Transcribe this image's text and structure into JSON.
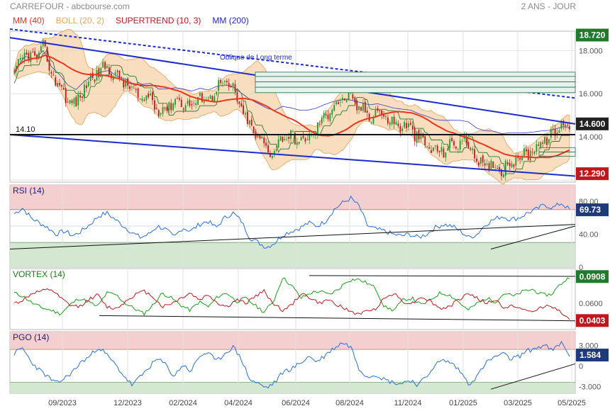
{
  "header": {
    "title": "CARREFOUR - abcbourse.com",
    "period": "2 ANS - JOUR"
  },
  "legend": [
    {
      "label": "MM (40)",
      "color": "#e8371e"
    },
    {
      "label": "BOLL (20, 2)",
      "color": "#f0a64a"
    },
    {
      "label": "SUPERTREND (10, 3)",
      "color": "#c0161c"
    },
    {
      "label": "MM (200)",
      "color": "#2323c8"
    }
  ],
  "chart_data": [
    {
      "type": "candlestick",
      "x": [
        "09/2023",
        "12/2023",
        "02/2024",
        "04/2024",
        "06/2024",
        "08/2024",
        "11/2024",
        "01/2025",
        "03/2025",
        "05/2025"
      ],
      "y_ticks": [
        12.0,
        14.0,
        16.0,
        18.0
      ],
      "y_tick_labels": [
        "",
        "14.000",
        "16.000",
        "18.000"
      ],
      "ylim": [
        11.9,
        18.9
      ],
      "price_path": [
        [
          0,
          16.8
        ],
        [
          5,
          17.9
        ],
        [
          10,
          17.6
        ],
        [
          14,
          18.2
        ],
        [
          18,
          16.9
        ],
        [
          22,
          16.4
        ],
        [
          26,
          15.7
        ],
        [
          30,
          15.5
        ],
        [
          34,
          16.3
        ],
        [
          38,
          16.8
        ],
        [
          42,
          17.1
        ],
        [
          46,
          17.2
        ],
        [
          50,
          16.7
        ],
        [
          54,
          16.5
        ],
        [
          58,
          16.1
        ],
        [
          62,
          15.6
        ],
        [
          66,
          15.9
        ],
        [
          70,
          15.2
        ],
        [
          74,
          15.4
        ],
        [
          78,
          15.7
        ],
        [
          82,
          15.6
        ],
        [
          86,
          15.4
        ],
        [
          90,
          15.9
        ],
        [
          94,
          15.7
        ],
        [
          98,
          16.3
        ],
        [
          102,
          16.5
        ],
        [
          106,
          16.2
        ],
        [
          110,
          15.3
        ],
        [
          114,
          14.5
        ],
        [
          118,
          14.0
        ],
        [
          122,
          13.5
        ],
        [
          126,
          13.3
        ],
        [
          130,
          14.1
        ],
        [
          134,
          14.0
        ],
        [
          138,
          13.8
        ],
        [
          142,
          13.9
        ],
        [
          146,
          14.3
        ],
        [
          150,
          14.9
        ],
        [
          154,
          15.4
        ],
        [
          158,
          15.7
        ],
        [
          161,
          15.85
        ],
        [
          164,
          15.6
        ],
        [
          168,
          15.3
        ],
        [
          172,
          15.0
        ],
        [
          176,
          15.2
        ],
        [
          180,
          14.9
        ],
        [
          184,
          14.6
        ],
        [
          188,
          14.5
        ],
        [
          192,
          14.4
        ],
        [
          196,
          13.9
        ],
        [
          200,
          13.6
        ],
        [
          204,
          13.3
        ],
        [
          208,
          13.4
        ],
        [
          212,
          13.6
        ],
        [
          216,
          13.8
        ],
        [
          220,
          13.7
        ],
        [
          224,
          12.9
        ],
        [
          228,
          12.6
        ],
        [
          232,
          12.7
        ],
        [
          236,
          12.5
        ],
        [
          240,
          12.8
        ],
        [
          244,
          13.0
        ],
        [
          248,
          13.2
        ],
        [
          252,
          13.5
        ],
        [
          256,
          13.8
        ],
        [
          260,
          14.0
        ],
        [
          263,
          14.3
        ],
        [
          266,
          14.65
        ],
        [
          268,
          14.5
        ]
      ],
      "last_price": "14.600",
      "max_price": "18.720",
      "min_price": "12.290",
      "support_label": "14.10",
      "support_value": 14.1,
      "annotations": [
        "Oblique de Long terme"
      ],
      "series": [
        {
          "name": "MM (40)",
          "color": "#e8371e"
        },
        {
          "name": "BOLL (20, 2)",
          "color": "#f0a64a"
        },
        {
          "name": "SUPERTREND (10, 3)",
          "color": "#c0161c"
        },
        {
          "name": "MM (200)",
          "color": "#2323c8"
        }
      ],
      "grid": true
    },
    {
      "type": "line",
      "title": "RSI (14)",
      "y_ticks": [
        0,
        40.0,
        80.0
      ],
      "y_tick_labels": [
        "0",
        "40.00",
        "80.00"
      ],
      "ylim": [
        0,
        100
      ],
      "zones": {
        "overbought": 70,
        "oversold": 30
      },
      "last_value": "69.73",
      "color": "#2a6fd6",
      "values": [
        65,
        72,
        60,
        54,
        48,
        40,
        44,
        38,
        44,
        52,
        62,
        66,
        58,
        50,
        42,
        36,
        40,
        50,
        46,
        36,
        48,
        44,
        52,
        56,
        48,
        60,
        66,
        56,
        36,
        30,
        24,
        30,
        40,
        44,
        48,
        54,
        50,
        56,
        70,
        78,
        84,
        74,
        50,
        46,
        44,
        40,
        38,
        40,
        36,
        40,
        48,
        52,
        50,
        44,
        36,
        40,
        52,
        58,
        62,
        58,
        60,
        66,
        70,
        76,
        72,
        78,
        70
      ],
      "label_color": "#1f1f80"
    },
    {
      "type": "line",
      "title": "VORTEX (14)",
      "y_ticks": [
        0.06
      ],
      "y_tick_labels": [
        "0.0600"
      ],
      "ylim": [
        0.03,
        0.1
      ],
      "series": [
        {
          "name": "",
          "color": "#1b9c1b",
          "values": [
            0.072,
            0.068,
            0.06,
            0.055,
            0.052,
            0.048,
            0.058,
            0.066,
            0.062,
            0.056,
            0.072,
            0.07,
            0.06,
            0.054,
            0.048,
            0.058,
            0.072,
            0.066,
            0.058,
            0.052,
            0.062,
            0.056,
            0.068,
            0.072,
            0.062,
            0.066,
            0.058,
            0.05,
            0.062,
            0.09,
            0.08,
            0.066,
            0.072,
            0.074,
            0.07,
            0.076,
            0.086,
            0.088,
            0.084,
            0.078,
            0.056,
            0.052,
            0.064,
            0.066,
            0.058,
            0.064,
            0.072,
            0.07,
            0.062,
            0.052,
            0.06,
            0.066,
            0.062,
            0.072,
            0.068,
            0.074,
            0.076,
            0.07,
            0.07,
            0.082,
            0.09
          ]
        },
        {
          "name": "",
          "color": "#c0161c",
          "values": [
            0.06,
            0.064,
            0.072,
            0.074,
            0.076,
            0.066,
            0.058,
            0.056,
            0.064,
            0.07,
            0.056,
            0.054,
            0.062,
            0.07,
            0.074,
            0.068,
            0.056,
            0.06,
            0.066,
            0.072,
            0.064,
            0.07,
            0.06,
            0.056,
            0.064,
            0.06,
            0.068,
            0.074,
            0.06,
            0.052,
            0.058,
            0.072,
            0.066,
            0.06,
            0.064,
            0.058,
            0.052,
            0.048,
            0.05,
            0.054,
            0.066,
            0.072,
            0.062,
            0.06,
            0.068,
            0.062,
            0.054,
            0.056,
            0.064,
            0.072,
            0.066,
            0.06,
            0.064,
            0.054,
            0.058,
            0.052,
            0.05,
            0.056,
            0.058,
            0.05,
            0.04
          ]
        }
      ],
      "last_values": [
        "0.0908",
        "0.0403"
      ]
    },
    {
      "type": "line",
      "title": "PGO (14)",
      "y_ticks": [
        3.0,
        0,
        -3.0
      ],
      "y_tick_labels": [
        "3.000",
        "0",
        "-3.000"
      ],
      "ylim": [
        -4,
        5
      ],
      "zones": {
        "overbought": 2.4,
        "oversold": -2.4
      },
      "last_value": "1.584",
      "color": "#2a6fd6",
      "values": [
        1.8,
        2.6,
        0.6,
        -0.6,
        -1.6,
        -2.6,
        -1.8,
        -0.8,
        0.6,
        1.4,
        2.8,
        1.6,
        0.2,
        -1.4,
        -2.8,
        -1.6,
        -0.2,
        1.0,
        0.2,
        -1.6,
        0.2,
        -0.8,
        1.4,
        2.0,
        0.6,
        1.8,
        2.8,
        1.0,
        -2.0,
        -2.6,
        -3.2,
        -2.4,
        -0.8,
        -0.4,
        0.4,
        1.4,
        0.6,
        1.6,
        2.6,
        3.4,
        2.8,
        -0.4,
        -1.6,
        -1.2,
        -2.0,
        -2.4,
        -2.6,
        -2.0,
        -2.8,
        -1.6,
        0.2,
        0.8,
        0.4,
        -0.8,
        -2.6,
        -1.6,
        0.4,
        1.2,
        1.8,
        1.0,
        1.4,
        2.2,
        2.6,
        3.0,
        2.2,
        3.4,
        1.6
      ],
      "label_color": "#1f1f80"
    }
  ]
}
